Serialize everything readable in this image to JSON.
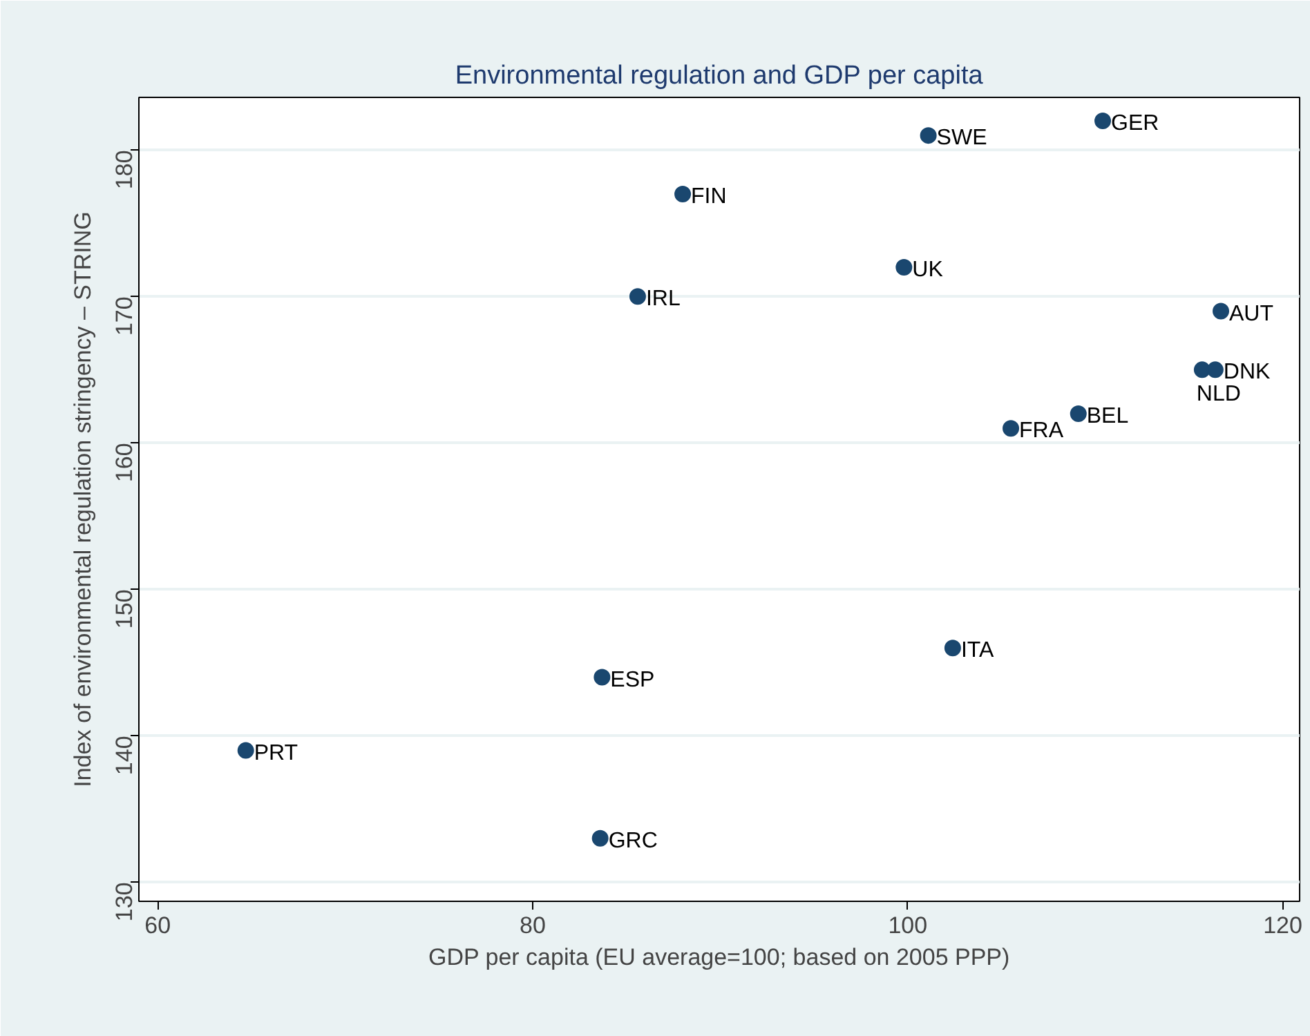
{
  "chart_data": {
    "type": "scatter",
    "title": "Environmental regulation and GDP per capita",
    "xlabel": "GDP per capita (EU average=100; based on 2005 PPP)",
    "ylabel": "Index of environmental regulation stringency – STRING",
    "xlim": [
      59,
      120.9
    ],
    "ylim": [
      128.7,
      183.6
    ],
    "xticks": [
      60,
      80,
      100,
      120
    ],
    "yticks": [
      130,
      140,
      150,
      160,
      170,
      180
    ],
    "grid": "y",
    "marker": "circle",
    "series": [
      {
        "color": "#1a476f",
        "x": [
          110.4,
          101.1,
          88.0,
          99.8,
          85.6,
          116.7,
          115.7,
          116.4,
          109.1,
          105.5,
          102.4,
          83.7,
          64.7,
          83.6
        ],
        "values": [
          182,
          181,
          177,
          172,
          170,
          169,
          165,
          165,
          162,
          161,
          146,
          144,
          139,
          133
        ]
      }
    ],
    "annotations": [
      {
        "text": "GER",
        "x": 110.4,
        "y": 182
      },
      {
        "text": "SWE",
        "x": 101.1,
        "y": 181
      },
      {
        "text": "FIN",
        "x": 88.0,
        "y": 177
      },
      {
        "text": "UK",
        "x": 99.8,
        "y": 172
      },
      {
        "text": "IRL",
        "x": 85.6,
        "y": 170
      },
      {
        "text": "AUT",
        "x": 116.7,
        "y": 169
      },
      {
        "text": "NLD",
        "x": 115.7,
        "y": 165
      },
      {
        "text": "DNK",
        "x": 116.4,
        "y": 165
      },
      {
        "text": "BEL",
        "x": 109.1,
        "y": 162
      },
      {
        "text": "FRA",
        "x": 105.5,
        "y": 161
      },
      {
        "text": "ITA",
        "x": 102.4,
        "y": 146
      },
      {
        "text": "ESP",
        "x": 83.7,
        "y": 144
      },
      {
        "text": "PRT",
        "x": 64.7,
        "y": 139
      },
      {
        "text": "GRC",
        "x": 83.6,
        "y": 133
      }
    ]
  }
}
